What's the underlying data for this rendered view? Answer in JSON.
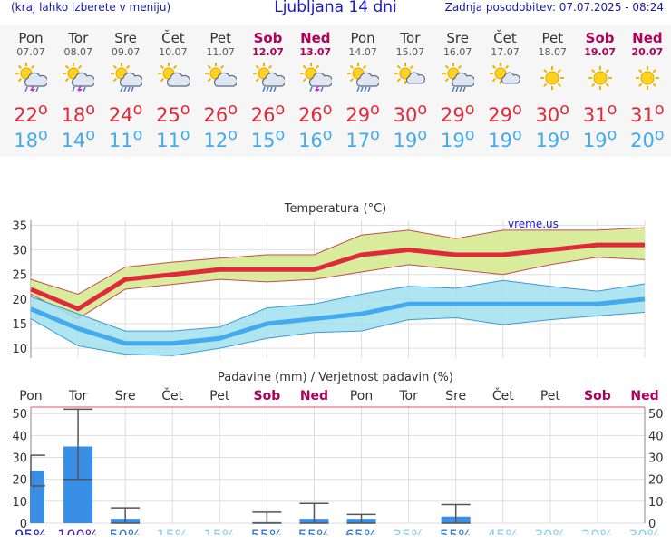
{
  "header": {
    "left_note": "(kraj lahko izberete v meniju)",
    "title": "Ljubljana 14 dni",
    "updated": "Zadnja posodobitev: 07.07.2025 - 08:24"
  },
  "colors": {
    "max_temp": "#e02a3a",
    "min_temp": "#44aaee",
    "weekend": "#b0005a",
    "max_band": "#d8ec9c",
    "min_band": "#a0e0ee",
    "precip_bar": "#3a8ee6"
  },
  "days": [
    {
      "name": "Pon",
      "date": "07.07",
      "icon": "sun-cloud-thunder-icon",
      "max": "22",
      "min": "18",
      "weekend": false
    },
    {
      "name": "Tor",
      "date": "08.07",
      "icon": "sun-cloud-thunder-icon",
      "max": "18",
      "min": "14",
      "weekend": false
    },
    {
      "name": "Sre",
      "date": "09.07",
      "icon": "sun-cloud-rain-icon",
      "max": "24",
      "min": "11",
      "weekend": false
    },
    {
      "name": "Čet",
      "date": "10.07",
      "icon": "sun-cloud-icon",
      "max": "25",
      "min": "11",
      "weekend": false
    },
    {
      "name": "Pet",
      "date": "11.07",
      "icon": "sun-cloud-icon",
      "max": "26",
      "min": "12",
      "weekend": false
    },
    {
      "name": "Sob",
      "date": "12.07",
      "icon": "sun-cloud-rain-icon",
      "max": "26",
      "min": "15",
      "weekend": true
    },
    {
      "name": "Ned",
      "date": "13.07",
      "icon": "sun-cloud-thunder-icon",
      "max": "26",
      "min": "16",
      "weekend": true
    },
    {
      "name": "Pon",
      "date": "14.07",
      "icon": "sun-cloud-rain-icon",
      "max": "29",
      "min": "17",
      "weekend": false
    },
    {
      "name": "Tor",
      "date": "15.07",
      "icon": "sun-small-cloud-icon",
      "max": "30",
      "min": "19",
      "weekend": false
    },
    {
      "name": "Sre",
      "date": "16.07",
      "icon": "sun-cloud-rain-icon",
      "max": "29",
      "min": "19",
      "weekend": false
    },
    {
      "name": "Čet",
      "date": "17.07",
      "icon": "sun-small-cloud-icon",
      "max": "29",
      "min": "19",
      "weekend": false
    },
    {
      "name": "Pet",
      "date": "18.07",
      "icon": "sun-icon",
      "max": "30",
      "min": "19",
      "weekend": false
    },
    {
      "name": "Sob",
      "date": "19.07",
      "icon": "sun-icon",
      "max": "31",
      "min": "19",
      "weekend": true
    },
    {
      "name": "Ned",
      "date": "20.07",
      "icon": "sun-icon",
      "max": "31",
      "min": "20",
      "weekend": true
    }
  ],
  "chart_data": [
    {
      "type": "line",
      "title": "Temperatura (°C)",
      "watermark": "vreme.us",
      "categories": [
        "Pon",
        "Tor",
        "Sre",
        "Čet",
        "Pet",
        "Sob",
        "Ned",
        "Pon",
        "Tor",
        "Sre",
        "Čet",
        "Pet",
        "Sob",
        "Ned"
      ],
      "ylim": [
        8,
        36
      ],
      "yticks": [
        10,
        15,
        20,
        25,
        30,
        35
      ],
      "grid": true,
      "series": [
        {
          "values": [
            22,
            18,
            24,
            25,
            26,
            26,
            26,
            29,
            30,
            29,
            29,
            30,
            31,
            31
          ]
        },
        {
          "values": [
            18,
            14,
            11,
            11,
            12,
            15,
            16,
            17,
            19,
            19,
            19,
            19,
            19,
            20
          ]
        }
      ],
      "bands": [
        {
          "upper": [
            24,
            21,
            26.5,
            27.5,
            28.3,
            29,
            29,
            33,
            34,
            32.3,
            34,
            34,
            34,
            34.5
          ],
          "lower": [
            21,
            16,
            22,
            23,
            24,
            23.5,
            24,
            25.5,
            27,
            26,
            25,
            27,
            28.5,
            28
          ]
        },
        {
          "upper": [
            20.5,
            17,
            13.5,
            13.5,
            14.3,
            18.2,
            19,
            21,
            22.6,
            22.2,
            23.8,
            22.6,
            21.6,
            23.1
          ],
          "lower": [
            16,
            10.5,
            8.8,
            8.5,
            10,
            12,
            13.2,
            13.5,
            15.8,
            16.2,
            14.8,
            15.8,
            16.6,
            17.3
          ]
        }
      ]
    },
    {
      "type": "bar",
      "title": "Padavine (mm) / Verjetnost padavin (%)",
      "categories": [
        "Pon",
        "Tor",
        "Sre",
        "Čet",
        "Pet",
        "Sob",
        "Ned",
        "Pon",
        "Tor",
        "Sre",
        "Čet",
        "Pet",
        "Sob",
        "Ned"
      ],
      "ylim": [
        0,
        53
      ],
      "yticks": [
        0,
        10,
        20,
        30,
        40,
        50
      ],
      "values": [
        24,
        35,
        2,
        0,
        0,
        0.5,
        2,
        2,
        0,
        3,
        0,
        0,
        0,
        0
      ],
      "error_low": [
        17,
        20,
        0,
        0,
        0,
        0,
        0,
        0,
        0,
        0,
        0,
        0,
        0,
        0
      ],
      "error_high": [
        31,
        52,
        7,
        0,
        0,
        5,
        9,
        4,
        0,
        8.5,
        0,
        0,
        0,
        0
      ],
      "probabilities": [
        "95%",
        "100%",
        "50%",
        "15%",
        "15%",
        "55%",
        "55%",
        "65%",
        "35%",
        "55%",
        "45%",
        "30%",
        "20%",
        "30%"
      ]
    }
  ]
}
